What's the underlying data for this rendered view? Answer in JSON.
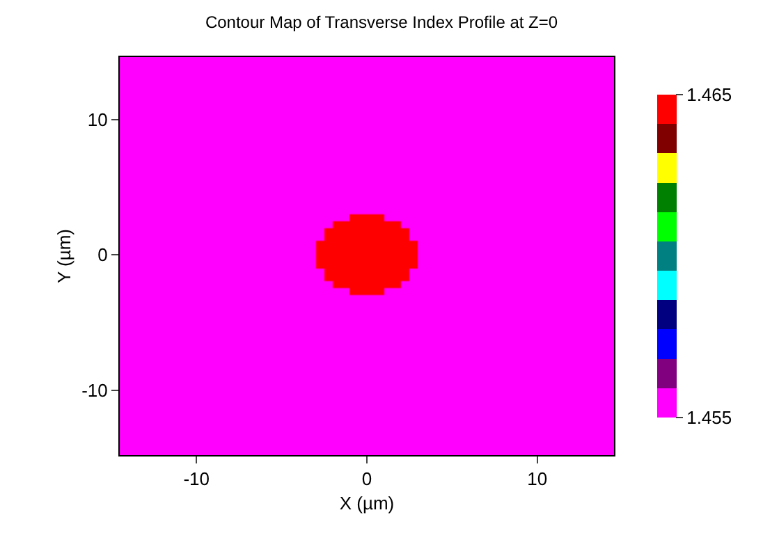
{
  "chart_data": {
    "type": "heatmap",
    "title": "Contour Map of Transverse Index Profile at Z=0",
    "xlabel": "X (µm)",
    "ylabel": "Y (µm)",
    "x": [
      -3.75,
      -3.25,
      -2.75,
      -2.25,
      -1.75,
      -1.25,
      -0.75,
      -0.25,
      0.25,
      0.75,
      1.25,
      1.75,
      2.25,
      2.75,
      3.25,
      3.75
    ],
    "y": [
      3.75,
      3.25,
      2.75,
      2.25,
      1.75,
      1.25,
      0.75,
      0.25,
      -0.25,
      -0.75,
      -1.25,
      -1.75,
      -2.25,
      -2.75,
      -3.25,
      -3.75
    ],
    "xlim": [
      -14.5,
      14.5
    ],
    "ylim": [
      -14.8,
      14.6
    ],
    "xticks": [
      -10,
      0,
      10
    ],
    "yticks": [
      -10,
      0,
      10
    ],
    "clim": [
      1.455,
      1.465
    ],
    "cticks": [
      1.455,
      1.465
    ],
    "colors": [
      "#ff00ff",
      "#800080",
      "#0000ff",
      "#000080",
      "#00ffff",
      "#008080",
      "#00ff00",
      "#008000",
      "#ffff00",
      "#800000",
      "#ff0000"
    ],
    "cells": [
      [
        1.455,
        1.455,
        1.455,
        1.455,
        1.455,
        1.455,
        1.455,
        1.455,
        1.455,
        1.455,
        1.455,
        1.455,
        1.455,
        1.455,
        1.455,
        1.455
      ],
      [
        1.455,
        1.455,
        1.455,
        1.455,
        1.455,
        1.455,
        1.455,
        1.455,
        1.455,
        1.455,
        1.455,
        1.455,
        1.455,
        1.455,
        1.455,
        1.455
      ],
      [
        1.455,
        1.455,
        1.455,
        1.455,
        1.455,
        1.455,
        1.465,
        1.465,
        1.465,
        1.465,
        1.455,
        1.455,
        1.455,
        1.455,
        1.455,
        1.455
      ],
      [
        1.455,
        1.455,
        1.455,
        1.455,
        1.465,
        1.465,
        1.465,
        1.465,
        1.465,
        1.465,
        1.465,
        1.465,
        1.455,
        1.455,
        1.455,
        1.455
      ],
      [
        1.455,
        1.455,
        1.455,
        1.465,
        1.465,
        1.465,
        1.465,
        1.465,
        1.465,
        1.465,
        1.465,
        1.465,
        1.465,
        1.455,
        1.455,
        1.455
      ],
      [
        1.455,
        1.455,
        1.455,
        1.465,
        1.465,
        1.465,
        1.465,
        1.465,
        1.465,
        1.465,
        1.465,
        1.465,
        1.465,
        1.455,
        1.455,
        1.455
      ],
      [
        1.455,
        1.455,
        1.465,
        1.465,
        1.465,
        1.465,
        1.465,
        1.465,
        1.465,
        1.465,
        1.465,
        1.465,
        1.465,
        1.465,
        1.455,
        1.455
      ],
      [
        1.455,
        1.455,
        1.465,
        1.465,
        1.465,
        1.465,
        1.465,
        1.465,
        1.465,
        1.465,
        1.465,
        1.465,
        1.465,
        1.465,
        1.455,
        1.455
      ],
      [
        1.455,
        1.455,
        1.465,
        1.465,
        1.465,
        1.465,
        1.465,
        1.465,
        1.465,
        1.465,
        1.465,
        1.465,
        1.465,
        1.465,
        1.455,
        1.455
      ],
      [
        1.455,
        1.455,
        1.465,
        1.465,
        1.465,
        1.465,
        1.465,
        1.465,
        1.465,
        1.465,
        1.465,
        1.465,
        1.465,
        1.465,
        1.455,
        1.455
      ],
      [
        1.455,
        1.455,
        1.455,
        1.465,
        1.465,
        1.465,
        1.465,
        1.465,
        1.465,
        1.465,
        1.465,
        1.465,
        1.465,
        1.455,
        1.455,
        1.455
      ],
      [
        1.455,
        1.455,
        1.455,
        1.465,
        1.465,
        1.465,
        1.465,
        1.465,
        1.465,
        1.465,
        1.465,
        1.465,
        1.465,
        1.455,
        1.455,
        1.455
      ],
      [
        1.455,
        1.455,
        1.455,
        1.455,
        1.465,
        1.465,
        1.465,
        1.465,
        1.465,
        1.465,
        1.465,
        1.465,
        1.455,
        1.455,
        1.455,
        1.455
      ],
      [
        1.455,
        1.455,
        1.455,
        1.455,
        1.455,
        1.455,
        1.465,
        1.465,
        1.465,
        1.465,
        1.455,
        1.455,
        1.455,
        1.455,
        1.455,
        1.455
      ],
      [
        1.455,
        1.455,
        1.455,
        1.455,
        1.455,
        1.455,
        1.455,
        1.455,
        1.455,
        1.455,
        1.455,
        1.455,
        1.455,
        1.455,
        1.455,
        1.455
      ],
      [
        1.455,
        1.455,
        1.455,
        1.455,
        1.455,
        1.455,
        1.455,
        1.455,
        1.455,
        1.455,
        1.455,
        1.455,
        1.455,
        1.455,
        1.455,
        1.455
      ]
    ]
  }
}
